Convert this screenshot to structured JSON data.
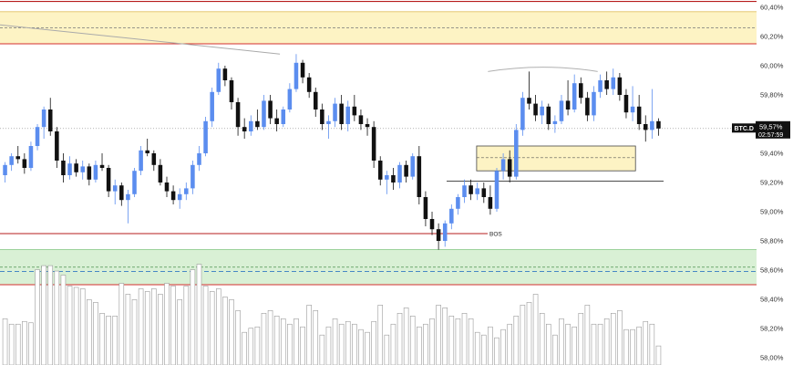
{
  "chart_data": {
    "type": "candlestick",
    "symbol": "BTC.D",
    "last_price_label": "59,57%",
    "countdown_label": "02:57:59",
    "y_axis": {
      "ticks": [
        58.0,
        58.2,
        58.4,
        58.6,
        58.8,
        59.0,
        59.2,
        59.4,
        59.6,
        59.8,
        60.0,
        60.2,
        60.4
      ],
      "tick_labels": [
        "58,00%",
        "58,20%",
        "58,40%",
        "58,60%",
        "58,80%",
        "59,00%",
        "59,20%",
        "59,40%",
        "59,60%",
        "59,80%",
        "60,00%",
        "60,20%",
        "60,40%"
      ],
      "range": [
        57.95,
        60.45
      ]
    },
    "current_price": 59.57,
    "zones": [
      {
        "kind": "supply",
        "top": 60.37,
        "bottom": 60.15,
        "mid": 60.26,
        "color": "#fdf3c4",
        "border": "#d32f2f"
      },
      {
        "kind": "demand",
        "top": 58.74,
        "bottom": 58.5,
        "mid": 58.62,
        "mid2": 58.59,
        "color": "#d9f0d5",
        "border": "#d32f2f"
      },
      {
        "kind": "orderblock",
        "top": 59.45,
        "bottom": 59.28,
        "mid": 59.37,
        "x_start": 0.63,
        "x_end": 0.84,
        "color": "#fdf3c4",
        "border": "#444444"
      }
    ],
    "levels": [
      {
        "name": "top-resistance",
        "value": 60.44,
        "color": "#b71c1c"
      },
      {
        "name": "bos-level",
        "value": 58.85,
        "color": "#b71c1c",
        "label": "BOS"
      },
      {
        "name": "structure-level",
        "value": 59.21,
        "color": "#333333"
      }
    ],
    "bos_text": "BOS",
    "trendline": {
      "from": [
        0.0,
        60.28
      ],
      "to": [
        0.37,
        60.08
      ],
      "color": "#aaaaaa"
    },
    "arc": {
      "from": [
        0.645,
        59.96
      ],
      "to": [
        0.79,
        59.96
      ],
      "peak": 59.99
    },
    "candle_colors": {
      "up": "#5b8def",
      "down": "#111111"
    },
    "candles": [
      [
        59.25,
        59.34,
        59.2,
        59.32
      ],
      [
        59.32,
        59.4,
        59.28,
        59.38
      ],
      [
        59.38,
        59.45,
        59.33,
        59.36
      ],
      [
        59.36,
        59.4,
        59.26,
        59.3
      ],
      [
        59.3,
        59.48,
        59.28,
        59.45
      ],
      [
        59.45,
        59.6,
        59.42,
        59.58
      ],
      [
        59.58,
        59.72,
        59.5,
        59.7
      ],
      [
        59.7,
        59.78,
        59.52,
        59.55
      ],
      [
        59.55,
        59.58,
        59.3,
        59.35
      ],
      [
        59.35,
        59.4,
        59.2,
        59.25
      ],
      [
        59.25,
        59.38,
        59.22,
        59.33
      ],
      [
        59.33,
        59.36,
        59.24,
        59.27
      ],
      [
        59.27,
        59.35,
        59.22,
        59.31
      ],
      [
        59.31,
        59.33,
        59.18,
        59.22
      ],
      [
        59.22,
        59.35,
        59.2,
        59.32
      ],
      [
        59.32,
        59.4,
        59.28,
        59.3
      ],
      [
        59.3,
        59.32,
        59.1,
        59.14
      ],
      [
        59.14,
        59.22,
        59.05,
        59.18
      ],
      [
        59.18,
        59.2,
        59.04,
        59.08
      ],
      [
        59.08,
        59.15,
        58.92,
        59.12
      ],
      [
        59.12,
        59.3,
        59.1,
        59.28
      ],
      [
        59.28,
        59.45,
        59.25,
        59.42
      ],
      [
        59.42,
        59.5,
        59.38,
        59.4
      ],
      [
        59.4,
        59.42,
        59.28,
        59.32
      ],
      [
        59.32,
        59.36,
        59.18,
        59.2
      ],
      [
        59.2,
        59.24,
        59.1,
        59.14
      ],
      [
        59.14,
        59.18,
        59.05,
        59.08
      ],
      [
        59.08,
        59.16,
        59.02,
        59.12
      ],
      [
        59.12,
        59.2,
        59.08,
        59.16
      ],
      [
        59.16,
        59.35,
        59.12,
        59.32
      ],
      [
        59.32,
        59.45,
        59.28,
        59.4
      ],
      [
        59.4,
        59.65,
        59.38,
        59.62
      ],
      [
        59.62,
        59.85,
        59.58,
        59.82
      ],
      [
        59.82,
        60.02,
        59.8,
        59.98
      ],
      [
        59.98,
        60.0,
        59.86,
        59.9
      ],
      [
        59.9,
        59.92,
        59.7,
        59.75
      ],
      [
        59.75,
        59.78,
        59.52,
        59.58
      ],
      [
        59.58,
        59.64,
        59.5,
        59.55
      ],
      [
        59.55,
        59.66,
        59.52,
        59.62
      ],
      [
        59.62,
        59.7,
        59.56,
        59.58
      ],
      [
        59.58,
        59.8,
        59.56,
        59.76
      ],
      [
        59.76,
        59.8,
        59.6,
        59.64
      ],
      [
        59.64,
        59.7,
        59.55,
        59.6
      ],
      [
        59.6,
        59.72,
        59.58,
        59.7
      ],
      [
        59.7,
        59.88,
        59.68,
        59.84
      ],
      [
        59.84,
        60.08,
        59.82,
        60.02
      ],
      [
        60.02,
        60.04,
        59.88,
        59.92
      ],
      [
        59.92,
        59.95,
        59.78,
        59.82
      ],
      [
        59.82,
        59.85,
        59.65,
        59.7
      ],
      [
        59.7,
        59.74,
        59.56,
        59.6
      ],
      [
        59.6,
        59.66,
        59.5,
        59.62
      ],
      [
        59.62,
        59.78,
        59.58,
        59.74
      ],
      [
        59.74,
        59.8,
        59.56,
        59.6
      ],
      [
        59.6,
        59.76,
        59.55,
        59.72
      ],
      [
        59.72,
        59.8,
        59.62,
        59.66
      ],
      [
        59.66,
        59.7,
        59.56,
        59.6
      ],
      [
        59.6,
        59.64,
        59.52,
        59.58
      ],
      [
        59.58,
        59.62,
        59.3,
        59.35
      ],
      [
        59.35,
        59.38,
        59.18,
        59.22
      ],
      [
        59.22,
        59.28,
        59.12,
        59.25
      ],
      [
        59.25,
        59.3,
        59.15,
        59.2
      ],
      [
        59.2,
        59.34,
        59.16,
        59.32
      ],
      [
        59.32,
        59.35,
        59.2,
        59.24
      ],
      [
        59.24,
        59.4,
        59.22,
        59.38
      ],
      [
        59.38,
        59.45,
        59.05,
        59.1
      ],
      [
        59.1,
        59.14,
        58.9,
        58.95
      ],
      [
        58.95,
        59.0,
        58.84,
        58.88
      ],
      [
        58.88,
        58.92,
        58.74,
        58.8
      ],
      [
        58.8,
        58.94,
        58.76,
        58.92
      ],
      [
        58.92,
        59.05,
        58.88,
        59.02
      ],
      [
        59.02,
        59.12,
        58.98,
        59.1
      ],
      [
        59.1,
        59.22,
        59.06,
        59.18
      ],
      [
        59.18,
        59.22,
        59.08,
        59.12
      ],
      [
        59.12,
        59.2,
        59.08,
        59.16
      ],
      [
        59.16,
        59.2,
        59.06,
        59.1
      ],
      [
        59.1,
        59.18,
        58.98,
        59.02
      ],
      [
        59.02,
        59.3,
        59.0,
        59.28
      ],
      [
        59.28,
        59.4,
        59.22,
        59.36
      ],
      [
        59.36,
        59.42,
        59.2,
        59.24
      ],
      [
        59.24,
        59.6,
        59.22,
        59.56
      ],
      [
        59.56,
        59.82,
        59.52,
        59.78
      ],
      [
        59.78,
        59.96,
        59.7,
        59.74
      ],
      [
        59.74,
        59.8,
        59.62,
        59.66
      ],
      [
        59.66,
        59.76,
        59.6,
        59.72
      ],
      [
        59.72,
        59.74,
        59.56,
        59.6
      ],
      [
        59.6,
        59.66,
        59.54,
        59.62
      ],
      [
        59.62,
        59.8,
        59.6,
        59.76
      ],
      [
        59.76,
        59.9,
        59.66,
        59.7
      ],
      [
        59.7,
        59.94,
        59.68,
        59.88
      ],
      [
        59.88,
        59.92,
        59.74,
        59.78
      ],
      [
        59.78,
        59.82,
        59.62,
        59.66
      ],
      [
        59.66,
        59.86,
        59.62,
        59.82
      ],
      [
        59.82,
        59.94,
        59.78,
        59.9
      ],
      [
        59.9,
        59.96,
        59.8,
        59.84
      ],
      [
        59.84,
        59.98,
        59.8,
        59.92
      ],
      [
        59.92,
        59.95,
        59.76,
        59.8
      ],
      [
        59.8,
        59.84,
        59.64,
        59.68
      ],
      [
        59.68,
        59.86,
        59.62,
        59.72
      ],
      [
        59.72,
        59.8,
        59.56,
        59.6
      ],
      [
        59.6,
        59.66,
        59.48,
        59.56
      ],
      [
        59.56,
        59.84,
        59.5,
        59.62
      ],
      [
        59.62,
        59.64,
        59.52,
        59.57
      ]
    ],
    "volume": [
      34,
      30,
      30,
      32,
      31,
      70,
      73,
      73,
      69,
      66,
      58,
      57,
      56,
      48,
      46,
      38,
      36,
      36,
      60,
      52,
      48,
      56,
      54,
      56,
      52,
      60,
      58,
      48,
      58,
      70,
      74,
      58,
      54,
      56,
      50,
      48,
      40,
      24,
      27,
      28,
      38,
      40,
      36,
      34,
      30,
      34,
      28,
      44,
      40,
      22,
      28,
      34,
      30,
      32,
      30,
      26,
      24,
      32,
      44,
      22,
      30,
      38,
      42,
      36,
      28,
      30,
      34,
      44,
      42,
      36,
      34,
      38,
      34,
      24,
      22,
      28,
      20,
      26,
      30,
      36,
      44,
      46,
      52,
      38,
      30,
      22,
      34,
      30,
      28,
      38,
      44,
      30,
      30,
      34,
      38,
      40,
      26,
      26,
      28,
      32,
      30,
      14
    ],
    "volume_scale": {
      "floor": 57.93,
      "top": 58.62
    }
  }
}
